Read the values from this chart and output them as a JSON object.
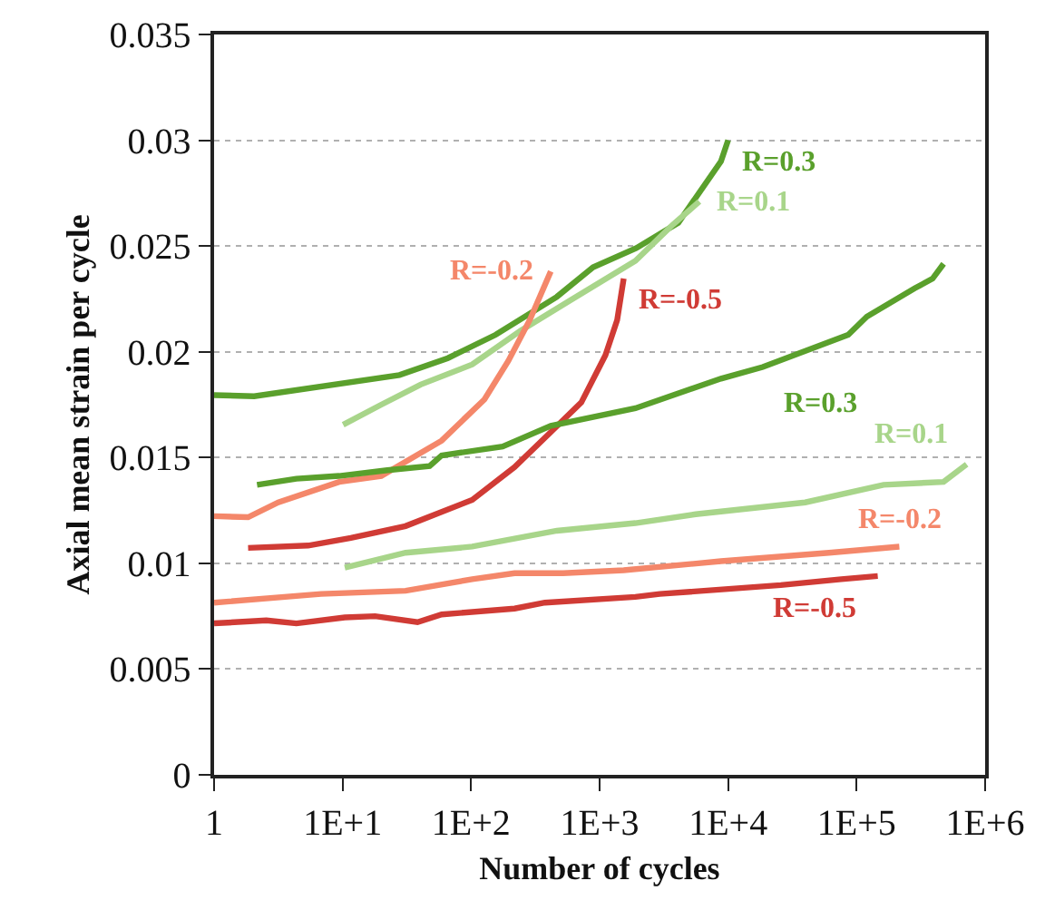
{
  "chart_data": {
    "type": "line",
    "xlabel": "Number of cycles",
    "ylabel": "Axial mean strain per cycle",
    "log": "x",
    "grid": "y",
    "legend": false,
    "marker": "none",
    "line_style": "solid",
    "xlim": [
      1,
      1000000
    ],
    "xticks": [
      1,
      {
        "value": 10,
        "label": "1E+1"
      },
      {
        "value": 100,
        "label": "1E+2"
      },
      {
        "value": 1000,
        "label": "1E+3"
      },
      {
        "value": 10000,
        "label": "1E+4"
      },
      {
        "value": 100000,
        "label": "1E+5"
      },
      {
        "value": 1000000,
        "label": "1E+6"
      }
    ],
    "ylim": [
      0,
      0.035
    ],
    "yticks": [
      0,
      0.005,
      0.01,
      0.015,
      0.02,
      0.025,
      0.03,
      0.035
    ],
    "series": [
      {
        "name": "R=0.3",
        "color": "#5aa02c",
        "x": [
          1,
          2.05,
          27.7,
          66,
          155,
          465,
          890,
          1930,
          4100,
          8800,
          10000
        ],
        "values": [
          0.01795,
          0.0179,
          0.0189,
          0.0197,
          0.0208,
          0.0226,
          0.024,
          0.0249,
          0.0261,
          0.029,
          0.03
        ]
      },
      {
        "name": "R=0.1",
        "color": "#a8d58a",
        "x": [
          10.1,
          20,
          40.5,
          102,
          243,
          580,
          1900,
          3700,
          5970
        ],
        "values": [
          0.01655,
          0.0175,
          0.01845,
          0.0194,
          0.021,
          0.0224,
          0.0243,
          0.026,
          0.0271
        ]
      },
      {
        "name": "R=-0.5",
        "color": "#d03b35",
        "x": [
          1.84,
          5.4,
          11.6,
          30.9,
          102,
          218,
          417,
          720,
          1110,
          1370,
          1540
        ],
        "values": [
          0.01073,
          0.01084,
          0.0112,
          0.01176,
          0.013,
          0.01455,
          0.0162,
          0.0176,
          0.01984,
          0.0215,
          0.02346
        ]
      },
      {
        "name": "R=-0.2",
        "color": "#f4876a",
        "x": [
          1,
          1.84,
          3.16,
          9.4,
          20,
          59,
          127,
          195,
          286,
          417
        ],
        "values": [
          0.01223,
          0.01218,
          0.01288,
          0.01385,
          0.01413,
          0.0158,
          0.01775,
          0.01957,
          0.0215,
          0.0238
        ]
      },
      {
        "name": "R=0.3",
        "color": "#5aa02c",
        "x": [
          2.16,
          4.37,
          9.4,
          22.3,
          47.6,
          59,
          176,
          417,
          1900,
          8800,
          18600,
          86000,
          120000,
          283000,
          390000,
          475000
        ],
        "values": [
          0.01371,
          0.014,
          0.01413,
          0.0144,
          0.0146,
          0.0151,
          0.01552,
          0.0165,
          0.01733,
          0.01873,
          0.01928,
          0.0208,
          0.02166,
          0.023,
          0.02346,
          0.02416
        ]
      },
      {
        "name": "R=0.1",
        "color": "#a8d58a",
        "x": [
          10.4,
          30.9,
          102,
          465,
          1900,
          5600,
          39800,
          162000,
          475000,
          718000
        ],
        "values": [
          0.0098,
          0.0105,
          0.01079,
          0.01154,
          0.0119,
          0.01232,
          0.01288,
          0.01371,
          0.01385,
          0.01468
        ]
      },
      {
        "name": "R=-0.2",
        "color": "#f4876a",
        "x": [
          1,
          6.8,
          30.9,
          102,
          218,
          520,
          1540,
          8800,
          61000,
          215000
        ],
        "values": [
          0.00814,
          0.00855,
          0.0087,
          0.00925,
          0.00953,
          0.00953,
          0.00967,
          0.0101,
          0.0105,
          0.01079
        ]
      },
      {
        "name": "R=-0.5",
        "color": "#d03b35",
        "x": [
          1,
          2.55,
          4.37,
          10.4,
          17.9,
          38.3,
          59,
          218,
          375,
          1900,
          2940,
          25700,
          76000,
          146000
        ],
        "values": [
          0.00716,
          0.0073,
          0.00716,
          0.00744,
          0.0075,
          0.00722,
          0.00758,
          0.00786,
          0.00814,
          0.00841,
          0.00855,
          0.00897,
          0.00925,
          0.0094
        ]
      }
    ]
  }
}
